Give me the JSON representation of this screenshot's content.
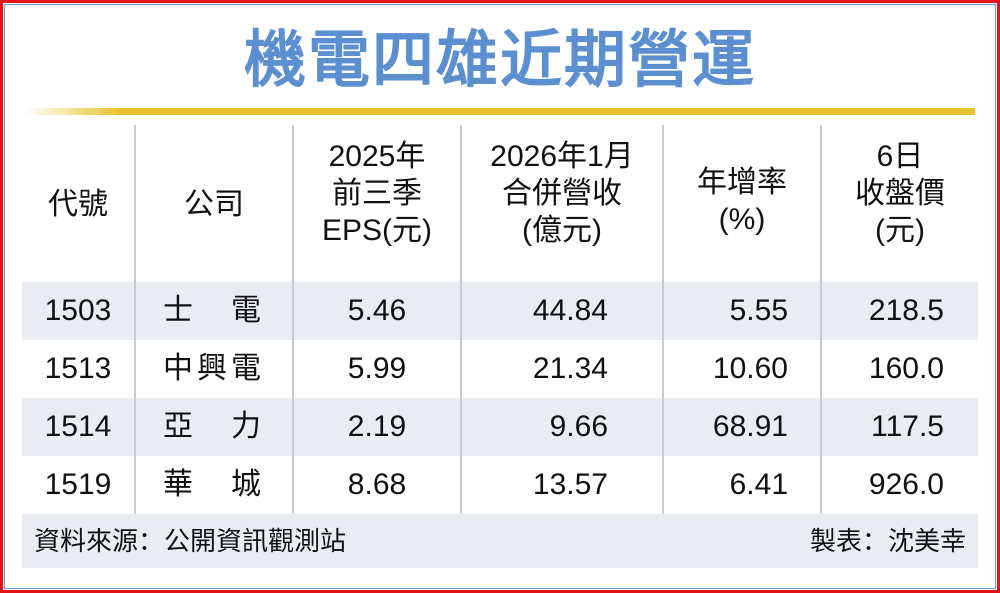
{
  "title": "機電四雄近期營運",
  "headers": [
    [
      "代號"
    ],
    [
      "公司"
    ],
    [
      "2025年",
      "前三季",
      "EPS(元)"
    ],
    [
      "2026年1月",
      "合併營收",
      "(億元)"
    ],
    [
      "年增率",
      "(%)"
    ],
    [
      "6日",
      "收盤價",
      "(元)"
    ]
  ],
  "rows": [
    {
      "code": "1503",
      "company": "士　電",
      "eps": "5.46",
      "revenue": "44.84",
      "yoy": "5.55",
      "close": "218.5"
    },
    {
      "code": "1513",
      "company": "中興電",
      "eps": "5.99",
      "revenue": "21.34",
      "yoy": "10.60",
      "close": "160.0"
    },
    {
      "code": "1514",
      "company": "亞　力",
      "eps": "2.19",
      "revenue": "9.66",
      "yoy": "68.91",
      "close": "117.5"
    },
    {
      "code": "1519",
      "company": "華　城",
      "eps": "8.68",
      "revenue": "13.57",
      "yoy": "6.41",
      "close": "926.0"
    }
  ],
  "footer": {
    "source": "資料來源：公開資訊觀測站",
    "author": "製表：沈美幸"
  },
  "colors": {
    "title": "#5b8fd0",
    "accent_line": "#e8c22c",
    "row_shade": "#e9edf2",
    "border": "#e3121b"
  }
}
